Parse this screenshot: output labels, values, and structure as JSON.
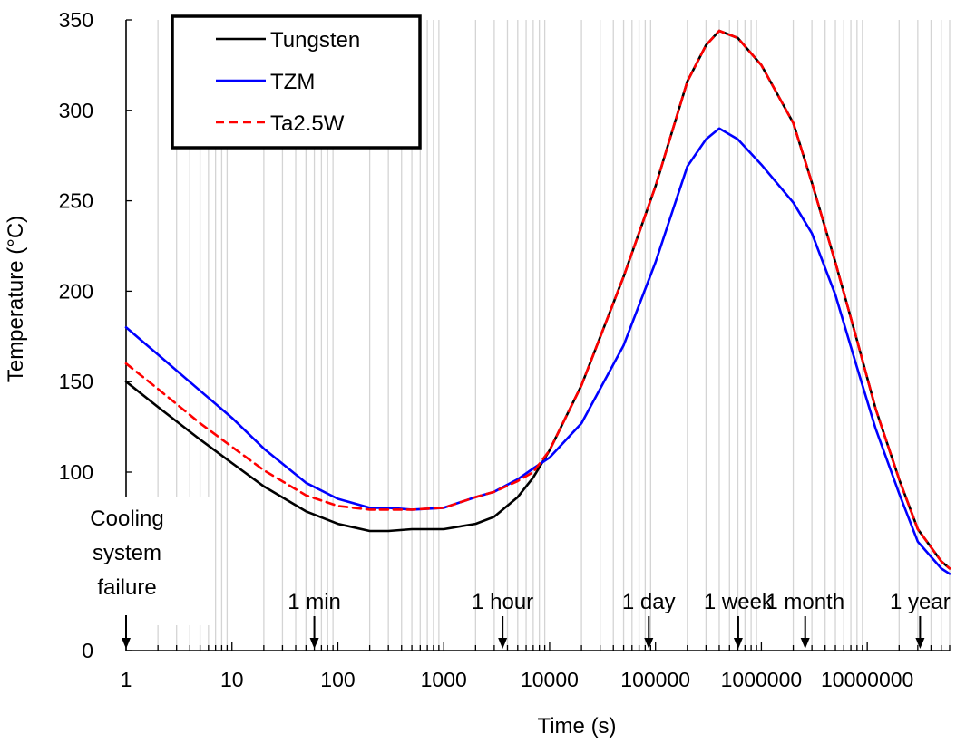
{
  "chart_data": {
    "type": "line",
    "title": "",
    "xlabel": "Time  (s)",
    "ylabel": "Temperature  (°C)",
    "xscale": "log",
    "xlim": [
      1,
      60000000
    ],
    "ylim": [
      0,
      350
    ],
    "x_tick_labels": [
      "1",
      "10",
      "100",
      "1000",
      "10000",
      "100000",
      "1000000",
      "10000000"
    ],
    "y_tick_labels": [
      "0",
      "100",
      "150",
      "200",
      "250",
      "300",
      "350"
    ],
    "grid": "vertical minor gridlines",
    "legend_position": "top-left",
    "series": [
      {
        "name": "Tungsten",
        "color": "#000000",
        "style": "solid",
        "x": [
          1,
          2,
          5,
          10,
          20,
          50,
          100,
          200,
          300,
          500,
          1000,
          2000,
          3000,
          5000,
          7000,
          10000,
          20000,
          50000,
          100000,
          200000,
          300000,
          400000,
          600000,
          1000000,
          2000000,
          3000000,
          5000000,
          8000000,
          12000000,
          20000000,
          30000000,
          50000000,
          60000000
        ],
        "y": [
          150,
          136,
          118,
          105,
          92,
          78,
          71,
          67,
          67,
          68,
          68,
          71,
          75,
          86,
          97,
          112,
          148,
          208,
          258,
          316,
          336,
          344,
          340,
          325,
          293,
          260,
          216,
          173,
          135,
          96,
          68,
          50,
          46
        ]
      },
      {
        "name": "TZM",
        "color": "#0000ff",
        "style": "solid",
        "x": [
          1,
          2,
          5,
          10,
          20,
          50,
          100,
          200,
          300,
          500,
          1000,
          2000,
          3000,
          5000,
          7000,
          10000,
          20000,
          50000,
          100000,
          200000,
          300000,
          400000,
          600000,
          1000000,
          2000000,
          3000000,
          5000000,
          8000000,
          12000000,
          20000000,
          30000000,
          50000000,
          60000000
        ],
        "y": [
          180,
          165,
          145,
          130,
          113,
          94,
          85,
          80,
          80,
          79,
          80,
          86,
          89,
          96,
          102,
          108,
          127,
          170,
          216,
          269,
          284,
          290,
          284,
          270,
          249,
          232,
          198,
          158,
          124,
          88,
          61,
          46,
          43
        ]
      },
      {
        "name": "Ta2.5W",
        "color": "#ff0000",
        "style": "dashed",
        "x": [
          1,
          2,
          5,
          10,
          20,
          50,
          100,
          200,
          300,
          500,
          1000,
          2000,
          3000,
          5000,
          7000,
          10000,
          20000,
          50000,
          100000,
          200000,
          300000,
          400000,
          600000,
          1000000,
          2000000,
          3000000,
          5000000,
          8000000,
          12000000,
          20000000,
          30000000,
          50000000,
          60000000
        ],
        "y": [
          160,
          146,
          127,
          114,
          101,
          87,
          81,
          79,
          79,
          79,
          80,
          86,
          89,
          95,
          100,
          112,
          148,
          208,
          258,
          316,
          336,
          344,
          340,
          325,
          293,
          260,
          216,
          173,
          135,
          96,
          68,
          50,
          46
        ]
      }
    ],
    "annotations": [
      {
        "x": 1,
        "lines": [
          "Cooling",
          "system",
          "failure"
        ]
      },
      {
        "x": 60,
        "lines": [
          "1  min"
        ]
      },
      {
        "x": 3600,
        "lines": [
          "1  hour"
        ]
      },
      {
        "x": 86400,
        "lines": [
          "1 day"
        ]
      },
      {
        "x": 604800,
        "lines": [
          "1 week"
        ]
      },
      {
        "x": 2592000,
        "lines": [
          "1 month"
        ]
      },
      {
        "x": 31536000,
        "lines": [
          "1 year"
        ]
      }
    ]
  }
}
